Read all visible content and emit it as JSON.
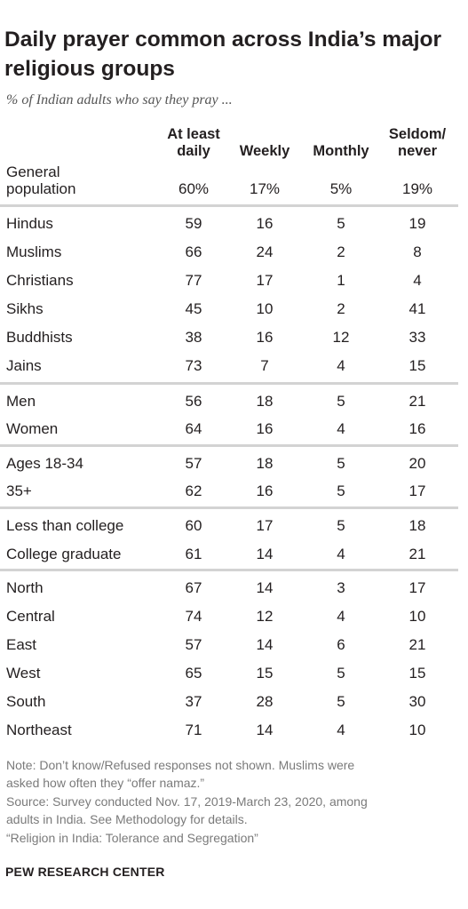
{
  "chart_data": {
    "type": "table",
    "title": "Daily prayer common across India’s major religious groups",
    "subtitle": "% of Indian adults who say they pray ...",
    "columns": [
      {
        "lines": [
          "At least",
          "daily"
        ]
      },
      {
        "lines": [
          "Weekly"
        ]
      },
      {
        "lines": [
          "Monthly"
        ]
      },
      {
        "lines": [
          "Seldom/",
          "never"
        ]
      }
    ],
    "rows": [
      {
        "label": [
          "General",
          "population"
        ],
        "values": [
          "60%",
          "17%",
          "5%",
          "19%"
        ]
      },
      {
        "label": [
          "Hindus"
        ],
        "values": [
          "59",
          "16",
          "5",
          "19"
        ]
      },
      {
        "label": [
          "Muslims"
        ],
        "values": [
          "66",
          "24",
          "2",
          "8"
        ]
      },
      {
        "label": [
          "Christians"
        ],
        "values": [
          "77",
          "17",
          "1",
          "4"
        ]
      },
      {
        "label": [
          "Sikhs"
        ],
        "values": [
          "45",
          "10",
          "2",
          "41"
        ]
      },
      {
        "label": [
          "Buddhists"
        ],
        "values": [
          "38",
          "16",
          "12",
          "33"
        ]
      },
      {
        "label": [
          "Jains"
        ],
        "values": [
          "73",
          "7",
          "4",
          "15"
        ]
      },
      {
        "label": [
          "Men"
        ],
        "values": [
          "56",
          "18",
          "5",
          "21"
        ]
      },
      {
        "label": [
          "Women"
        ],
        "values": [
          "64",
          "16",
          "4",
          "16"
        ]
      },
      {
        "label": [
          "Ages 18-34"
        ],
        "values": [
          "57",
          "18",
          "5",
          "20"
        ]
      },
      {
        "label": [
          "35+"
        ],
        "values": [
          "62",
          "16",
          "5",
          "17"
        ]
      },
      {
        "label": [
          "Less than college"
        ],
        "values": [
          "60",
          "17",
          "5",
          "18"
        ]
      },
      {
        "label": [
          "College graduate"
        ],
        "values": [
          "61",
          "14",
          "4",
          "21"
        ]
      },
      {
        "label": [
          "North"
        ],
        "values": [
          "67",
          "14",
          "3",
          "17"
        ]
      },
      {
        "label": [
          "Central"
        ],
        "values": [
          "74",
          "12",
          "4",
          "10"
        ]
      },
      {
        "label": [
          "East"
        ],
        "values": [
          "57",
          "14",
          "6",
          "21"
        ]
      },
      {
        "label": [
          "West"
        ],
        "values": [
          "65",
          "15",
          "5",
          "15"
        ]
      },
      {
        "label": [
          "South"
        ],
        "values": [
          "37",
          "28",
          "5",
          "30"
        ]
      },
      {
        "label": [
          "Northeast"
        ],
        "values": [
          "71",
          "14",
          "4",
          "10"
        ]
      }
    ]
  },
  "notes": [
    "Note: Don’t know/Refused responses not shown. Muslims were",
    "asked how often they “offer namaz.”",
    "Source: Survey conducted Nov. 17, 2019-March 23, 2020, among",
    "adults in India. See Methodology for details.",
    "“Religion in India: Tolerance and Segregation”"
  ],
  "brand": "PEW RESEARCH CENTER"
}
